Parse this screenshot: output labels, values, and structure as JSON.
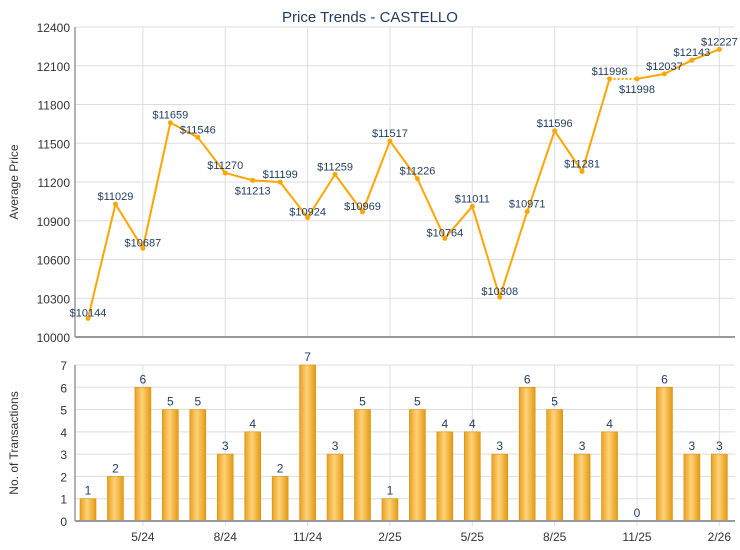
{
  "chart_data": [
    {
      "type": "line",
      "title": "Price Trends - CASTELLO",
      "ylabel": "Average Price",
      "ylim": [
        10000,
        12400
      ],
      "yticks": [
        10000,
        10300,
        10600,
        10900,
        11200,
        11500,
        11800,
        12100,
        12400
      ],
      "values": [
        10144,
        11029,
        10687,
        11659,
        11546,
        11270,
        11213,
        11199,
        10924,
        11259,
        10969,
        11517,
        11226,
        10764,
        11011,
        10308,
        10971,
        11596,
        11281,
        11998,
        11998,
        12037,
        12143,
        12227
      ],
      "labels": [
        "$10144",
        "$11029",
        "$10687",
        "$11659",
        "$11546",
        "$11270",
        "$11213",
        "$11199",
        "$10924",
        "$11259",
        "$10969",
        "$11517",
        "$11226",
        "$10764",
        "$11011",
        "$10308",
        "$10971",
        "$11596",
        "$11281",
        "$11998",
        "$11998",
        "$12037",
        "$12143",
        "$12227"
      ],
      "dotted_segments": [
        [
          19,
          20
        ]
      ],
      "color": "#FFA500",
      "label_color": "#1F3A5F",
      "grid": true
    },
    {
      "type": "bar",
      "ylabel": "No. of Transactions",
      "ylim": [
        0,
        7
      ],
      "yticks": [
        0,
        1,
        2,
        3,
        4,
        5,
        6,
        7
      ],
      "values": [
        1,
        2,
        6,
        5,
        5,
        3,
        4,
        2,
        7,
        3,
        5,
        1,
        5,
        4,
        4,
        3,
        6,
        5,
        3,
        4,
        0,
        6,
        3,
        3
      ],
      "xtick_labels": [
        {
          "index": 2,
          "label": "5/24"
        },
        {
          "index": 5,
          "label": "8/24"
        },
        {
          "index": 8,
          "label": "11/24"
        },
        {
          "index": 11,
          "label": "2/25"
        },
        {
          "index": 14,
          "label": "5/25"
        },
        {
          "index": 17,
          "label": "8/25"
        },
        {
          "index": 20,
          "label": "11/25"
        },
        {
          "index": 23,
          "label": "2/26"
        }
      ],
      "color": "#F5B032",
      "grid": true
    }
  ]
}
